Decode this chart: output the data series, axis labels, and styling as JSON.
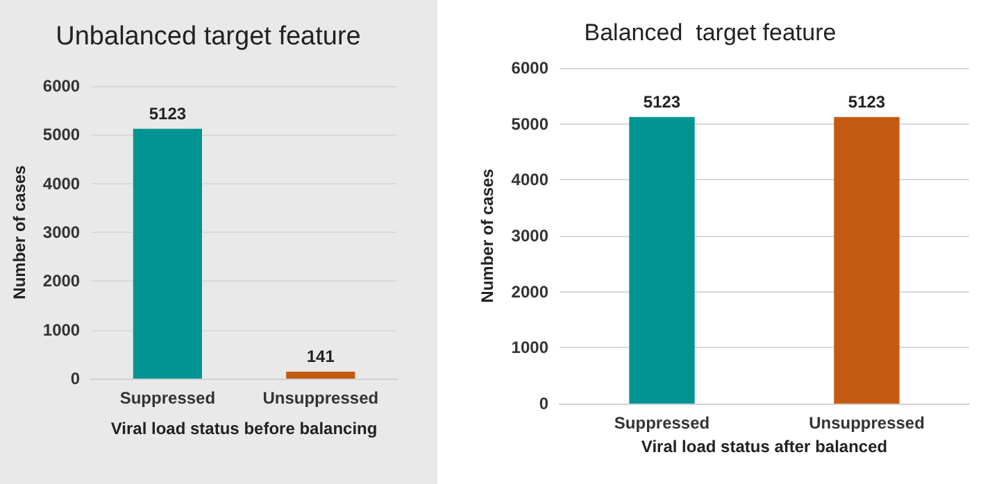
{
  "chart_data": [
    {
      "type": "bar",
      "title": "Unbalanced target feature",
      "xlabel": "Viral load status before balancing",
      "ylabel": "Number of cases",
      "categories": [
        "Suppressed",
        "Unsuppressed"
      ],
      "values": [
        5123,
        141
      ],
      "colors": [
        "#009593",
        "#c55a11"
      ],
      "ylim": [
        0,
        6000
      ],
      "yticks": [
        0,
        1000,
        2000,
        3000,
        4000,
        5000,
        6000
      ],
      "grid": "y",
      "data_labels": true
    },
    {
      "type": "bar",
      "title": "Balanced  target feature",
      "xlabel": "Viral load status after balanced",
      "ylabel": "Number of cases",
      "categories": [
        "Suppressed",
        "Unsuppressed"
      ],
      "values": [
        5123,
        5123
      ],
      "colors": [
        "#009593",
        "#c55a11"
      ],
      "ylim": [
        0,
        6000
      ],
      "yticks": [
        0,
        1000,
        2000,
        3000,
        4000,
        5000,
        6000
      ],
      "grid": "y",
      "data_labels": true
    }
  ]
}
